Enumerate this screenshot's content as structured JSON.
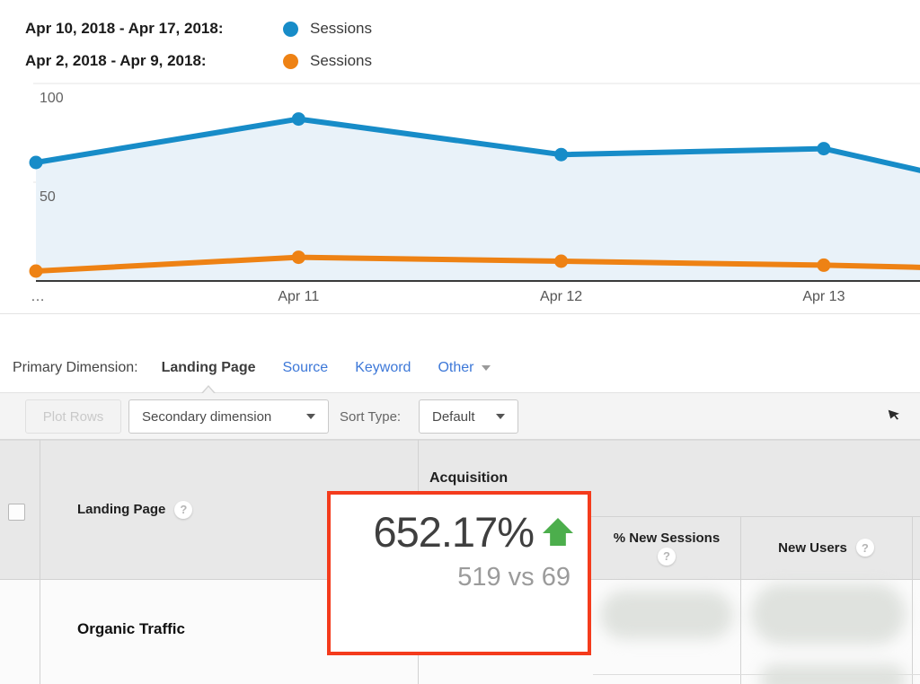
{
  "legend": {
    "rows": [
      {
        "date_range": "Apr 10, 2018 - Apr 17, 2018:",
        "metric": "Sessions",
        "color": "#178cc8"
      },
      {
        "date_range": "Apr 2, 2018 - Apr 9, 2018:",
        "metric": "Sessions",
        "color": "#ee8214"
      }
    ]
  },
  "chart_data": {
    "type": "line",
    "x_tick_labels": [
      "…",
      "Apr 11",
      "Apr 12",
      "Apr 13"
    ],
    "y_ticks": [
      100,
      50
    ],
    "ylim": [
      0,
      110
    ],
    "grid": true,
    "area_fill": "#e9f2f9",
    "series": [
      {
        "name": "Sessions (Apr 10, 2018 - Apr 17, 2018)",
        "color": "#178cc8",
        "values": [
          60,
          82,
          64,
          67,
          37
        ]
      },
      {
        "name": "Sessions (Apr 2, 2018 - Apr 9, 2018)",
        "color": "#ee8214",
        "values": [
          5,
          12,
          10,
          8,
          5
        ]
      }
    ]
  },
  "primary_dimension": {
    "label": "Primary Dimension:",
    "selected": "Landing Page",
    "links": [
      "Source",
      "Keyword"
    ],
    "other_label": "Other"
  },
  "toolbar": {
    "plot_rows_label": "Plot Rows",
    "secondary_dimension_label": "Secondary dimension",
    "sort_type_label": "Sort Type:",
    "sort_type_value": "Default"
  },
  "table": {
    "dimension_header": "Landing Page",
    "group_header": "Acquisition",
    "columns": [
      "% New Sessions",
      "New Users"
    ],
    "rows": [
      {
        "landing_page": "Organic Traffic"
      }
    ]
  },
  "callout": {
    "value": "652.17%",
    "comparison": "519 vs 69",
    "direction": "up",
    "border_color": "#f43b1c",
    "arrow_color": "#4cae4c"
  },
  "icons": {
    "help": "?"
  }
}
